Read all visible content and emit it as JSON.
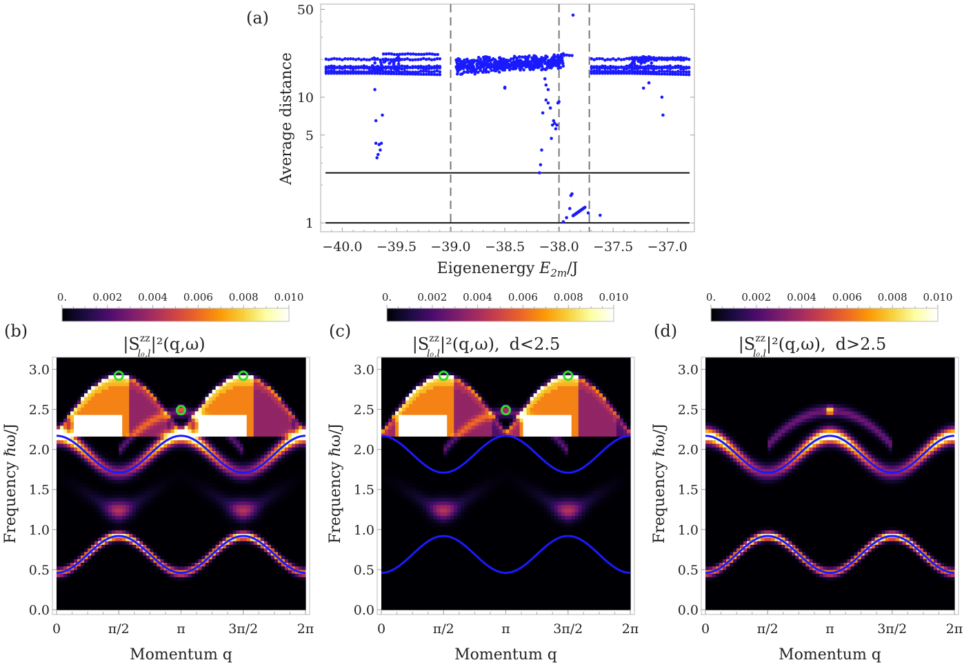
{
  "chart_data": [
    {
      "id": "a",
      "panel_label": "(a)",
      "type": "scatter",
      "xlabel_prefix": "Eigenenergy ",
      "xlabel_math": "E",
      "xlabel_sub": "2m",
      "xlabel_suffix": "/J",
      "ylabel": "Average distance",
      "xlim": [
        -40.2,
        -36.75
      ],
      "ylim": [
        0.85,
        55
      ],
      "yscale": "log",
      "xticks": [
        -40.0,
        -39.5,
        -39.0,
        -38.5,
        -38.0,
        -37.5,
        -37.0
      ],
      "xtick_labels": [
        "−40.0",
        "−39.5",
        "−39.0",
        "−38.5",
        "−38.0",
        "−37.5",
        "−37.0"
      ],
      "yticks": [
        1,
        5,
        10,
        50
      ],
      "ytick_labels": [
        "1",
        "5",
        "10",
        "50"
      ],
      "marker_color": "#1a1aff",
      "hlines": [
        1,
        2.5
      ],
      "hline_color": "#111111",
      "vlines_dashed": [
        -39.0,
        -38.0,
        -37.72
      ],
      "vline_color": "#777777",
      "clusters": [
        {
          "x_range": [
            -40.15,
            -39.1
          ],
          "bands": [
            20,
            17.5,
            17,
            16,
            15.5
          ],
          "note": "left cluster"
        },
        {
          "x_range": [
            -38.95,
            -37.95
          ],
          "center": 17.5,
          "spread": 3,
          "note": "central scattered cluster"
        },
        {
          "x_range": [
            -37.7,
            -36.8
          ],
          "bands": [
            20,
            17.5,
            17,
            16,
            15.5
          ],
          "note": "right cluster"
        }
      ],
      "outliers": [
        [
          -39.7,
          11.5
        ],
        [
          -39.69,
          6.5
        ],
        [
          -39.63,
          7.2
        ],
        [
          -39.69,
          4.3
        ],
        [
          -39.66,
          4.2
        ],
        [
          -39.64,
          4.3
        ],
        [
          -39.65,
          3.8
        ],
        [
          -39.67,
          3.5
        ],
        [
          -39.68,
          3.3
        ],
        [
          -38.5,
          12
        ],
        [
          -38.5,
          11.8
        ],
        [
          -38.16,
          3.8
        ],
        [
          -38.17,
          2.9
        ],
        [
          -38.18,
          2.5
        ],
        [
          -38.15,
          7.5
        ],
        [
          -38.12,
          9.5
        ],
        [
          -38.1,
          9.0
        ],
        [
          -38.08,
          8.2
        ],
        [
          -38.06,
          6.0
        ],
        [
          -38.05,
          6.5
        ],
        [
          -38.04,
          6.2
        ],
        [
          -38.02,
          6.0
        ],
        [
          -38.03,
          5.6
        ],
        [
          -38.07,
          4.7
        ],
        [
          -38.0,
          9.2
        ],
        [
          -38.01,
          9.0
        ],
        [
          -38.1,
          11.5
        ],
        [
          -38.12,
          12.5
        ],
        [
          -38.13,
          14
        ],
        [
          -37.87,
          45
        ],
        [
          -37.88,
          1.7
        ],
        [
          -37.89,
          1.65
        ],
        [
          -37.9,
          1.3
        ],
        [
          -37.93,
          1.1
        ],
        [
          -37.96,
          1.02
        ],
        [
          -37.73,
          1.2
        ],
        [
          -37.62,
          1.15
        ],
        [
          -37.05,
          10
        ],
        [
          -37.04,
          7.2
        ],
        [
          -37.22,
          11.8
        ],
        [
          -37.17,
          13
        ]
      ],
      "diagonal_segment": {
        "from": [
          -37.87,
          1.14
        ],
        "to": [
          -37.76,
          1.33
        ]
      },
      "upper_plateau": [
        {
          "x_range": [
            -39.62,
            -39.1
          ],
          "y": 22
        },
        {
          "x_range": [
            -37.98,
            -37.86
          ],
          "y": 21.5
        },
        {
          "x_range": [
            -37.35,
            -36.82
          ],
          "y": 20.5
        }
      ]
    },
    {
      "id": "b",
      "panel_label": "(b)",
      "type": "heatmap",
      "title_prefix": "|S",
      "title_sup": "zz",
      "title_sub": "l₀,l",
      "title_suffix": "|²(q,ω)",
      "title_condition": "",
      "xlabel": "Momentum q",
      "ylabel": "Frequency ℏω/J",
      "xlim": [
        0,
        6.2832
      ],
      "ylim": [
        0,
        3.15
      ],
      "xtick_labels": [
        "0",
        "π/2",
        "π",
        "3π/2",
        "2π"
      ],
      "ytick_labels": [
        "0.0",
        "0.5",
        "1.0",
        "1.5",
        "2.0",
        "2.5",
        "3.0"
      ],
      "yticks": [
        0.0,
        0.5,
        1.0,
        1.5,
        2.0,
        2.5,
        3.0
      ],
      "colorbar": {
        "min": 0,
        "max": 0.01,
        "tick_labels": [
          "0.",
          "0.002",
          "0.004",
          "0.006",
          "0.008",
          "0.010"
        ]
      },
      "features": {
        "upper_continuum": 1.0,
        "lower_continuum": 0.55,
        "lower_band": 1.0,
        "upper_band": 1.0,
        "pi_peak": 1.0
      },
      "band_curves": [
        {
          "name": "lower band",
          "min": 0.46,
          "max": 0.92
        },
        {
          "name": "upper band",
          "min": 1.71,
          "max": 2.17
        }
      ],
      "curve_color": "#1a1aff",
      "markers": [
        [
          1.5708,
          2.92
        ],
        [
          4.7124,
          2.92
        ],
        [
          3.1416,
          2.49
        ]
      ],
      "marker_color": "#33dd33"
    },
    {
      "id": "c",
      "panel_label": "(c)",
      "type": "heatmap",
      "title_prefix": "|S",
      "title_sup": "zz",
      "title_sub": "l₀,l",
      "title_suffix": "|²(q,ω),",
      "title_condition": "d<2.5",
      "xlabel": "Momentum q",
      "ylabel": "Frequency ℏω/J",
      "xlim": [
        0,
        6.2832
      ],
      "ylim": [
        0,
        3.15
      ],
      "xtick_labels": [
        "0",
        "π/2",
        "π",
        "3π/2",
        "2π"
      ],
      "ytick_labels": [
        "0.0",
        "0.5",
        "1.0",
        "1.5",
        "2.0",
        "2.5",
        "3.0"
      ],
      "yticks": [
        0.0,
        0.5,
        1.0,
        1.5,
        2.0,
        2.5,
        3.0
      ],
      "colorbar": {
        "min": 0,
        "max": 0.01,
        "tick_labels": [
          "0.",
          "0.002",
          "0.004",
          "0.006",
          "0.008",
          "0.010"
        ]
      },
      "features": {
        "upper_continuum": 1.0,
        "lower_continuum": 0.55,
        "lower_band": 0.0,
        "upper_band": 0.0,
        "pi_peak": 0.6
      },
      "band_curves": [
        {
          "name": "lower band",
          "min": 0.46,
          "max": 0.92
        },
        {
          "name": "upper band",
          "min": 1.71,
          "max": 2.17
        }
      ],
      "curve_color": "#1a1aff",
      "markers": [
        [
          1.5708,
          2.92
        ],
        [
          4.7124,
          2.92
        ],
        [
          3.1416,
          2.49
        ]
      ],
      "marker_color": "#33dd33"
    },
    {
      "id": "d",
      "panel_label": "(d)",
      "type": "heatmap",
      "title_prefix": "|S",
      "title_sup": "zz",
      "title_sub": "l₀,l",
      "title_suffix": "|²(q,ω),",
      "title_condition": "d>2.5",
      "xlabel": "Momentum q",
      "ylabel": "Frequency ℏω/J",
      "xlim": [
        0,
        6.2832
      ],
      "ylim": [
        0,
        3.15
      ],
      "xtick_labels": [
        "0",
        "π/2",
        "π",
        "3π/2",
        "2π"
      ],
      "ytick_labels": [
        "0.0",
        "0.5",
        "1.0",
        "1.5",
        "2.0",
        "2.5",
        "3.0"
      ],
      "yticks": [
        0.0,
        0.5,
        1.0,
        1.5,
        2.0,
        2.5,
        3.0
      ],
      "colorbar": {
        "min": 0,
        "max": 0.01,
        "tick_labels": [
          "0.",
          "0.002",
          "0.004",
          "0.006",
          "0.008",
          "0.010"
        ]
      },
      "features": {
        "upper_continuum": 0.0,
        "lower_continuum": 0.0,
        "lower_band": 1.0,
        "upper_band": 1.0,
        "pi_peak": 0.5,
        "weak_arch": 1.0
      },
      "band_curves": [
        {
          "name": "lower band",
          "min": 0.46,
          "max": 0.92
        },
        {
          "name": "upper band",
          "min": 1.71,
          "max": 2.17
        }
      ],
      "curve_color": "#1a1aff",
      "markers": [],
      "marker_color": "#33dd33"
    }
  ],
  "colormap_stops": [
    "#000004",
    "#1b0c41",
    "#4a0c6b",
    "#781c6d",
    "#a52c60",
    "#cf4446",
    "#ed6925",
    "#fb9b06",
    "#f7d13d",
    "#fcffa4",
    "#ffffff"
  ]
}
